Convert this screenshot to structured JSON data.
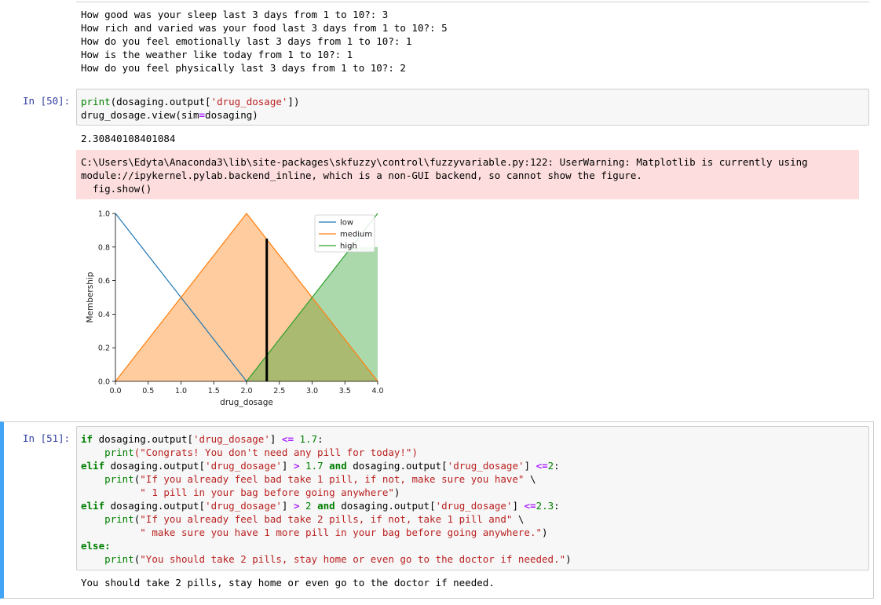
{
  "cell_top": {
    "output_lines": [
      "How good was your sleep last 3 days from 1 to 10?: 3",
      "How rich and varied was your food last 3 days from 1 to 10?: 5",
      "How do you feel emotionally last 3 days from 1 to 10?: 1",
      "How is the weather like today from 1 to 10?: 1",
      "How do you feel physically last 3 days from 1 to 10?: 2"
    ]
  },
  "cell_50": {
    "prompt": "In [50]:",
    "code": {
      "l1_fn": "print",
      "l1_a": "(dosaging.output[",
      "l1_str": "'drug_dosage'",
      "l1_b": "])",
      "l2_a": "drug_dosage.view(sim",
      "l2_op": "=",
      "l2_b": "dosaging)"
    },
    "result": "2.30840108401084",
    "stderr": [
      "C:\\Users\\Edyta\\Anaconda3\\lib\\site-packages\\skfuzzy\\control\\fuzzyvariable.py:122: UserWarning: Matplotlib is currently using",
      "module://ipykernel.pylab.backend_inline, which is a non-GUI backend, so cannot show the figure.",
      "  fig.show()"
    ]
  },
  "chart_data": {
    "type": "line",
    "xlabel": "drug_dosage",
    "ylabel": "Membership",
    "xlim": [
      0,
      4
    ],
    "ylim": [
      0,
      1
    ],
    "xticks": [
      "0.0",
      "0.5",
      "1.0",
      "1.5",
      "2.0",
      "2.5",
      "3.0",
      "3.5",
      "4.0"
    ],
    "yticks": [
      "0.0",
      "0.2",
      "0.4",
      "0.6",
      "0.8",
      "1.0"
    ],
    "legend_position": "top-right",
    "series": [
      {
        "name": "low",
        "color": "#1f77b4",
        "x": [
          0,
          2
        ],
        "y": [
          1,
          0
        ]
      },
      {
        "name": "medium",
        "color": "#ff7f0e",
        "x": [
          0,
          2,
          4
        ],
        "y": [
          0,
          1,
          0
        ]
      },
      {
        "name": "high",
        "color": "#2ca02c",
        "x": [
          2,
          4
        ],
        "y": [
          0,
          1
        ]
      }
    ],
    "fills": [
      {
        "color": "#ff7f0e",
        "x": [
          0,
          2,
          4
        ],
        "y": [
          0,
          1,
          0
        ]
      },
      {
        "color": "#2ca02c",
        "x": [
          2,
          3.6,
          4,
          4
        ],
        "y": [
          0,
          0.8,
          0.8,
          0
        ]
      }
    ],
    "crisp_value": 2.3084,
    "crisp_height": 0.85
  },
  "cell_51": {
    "prompt": "In [51]:",
    "result": "You should take 2 pills, stay home or even go to the doctor if needed.",
    "code": {
      "if": "if",
      "elif": "elif",
      "else": "else:",
      "and": "and",
      "print": "print",
      "dd": "dosaging.output[",
      "key": "'drug_dosage'",
      "close": "]",
      "le": "<=",
      "gt": ">",
      "n17": "1.7",
      "n2": "2",
      "n23": "2.3",
      "colon": ":",
      "s1": "(\"Congrats! You don't need any pill for today!\")",
      "s2a": "\"If you already feel bad take 1 pill, if not, make sure you have\"",
      "s2b": "\" 1 pill in your bag before going anywhere\"",
      "s3a": "\"If you already feel bad take 2 pills, if not, take 1 pill and\"",
      "s3b": "\" make sure you have 1 more pill in your bag before going anywhere.\"",
      "s4": "\"You should take 2 pills, stay home or even go to the doctor if needed.\""
    }
  }
}
